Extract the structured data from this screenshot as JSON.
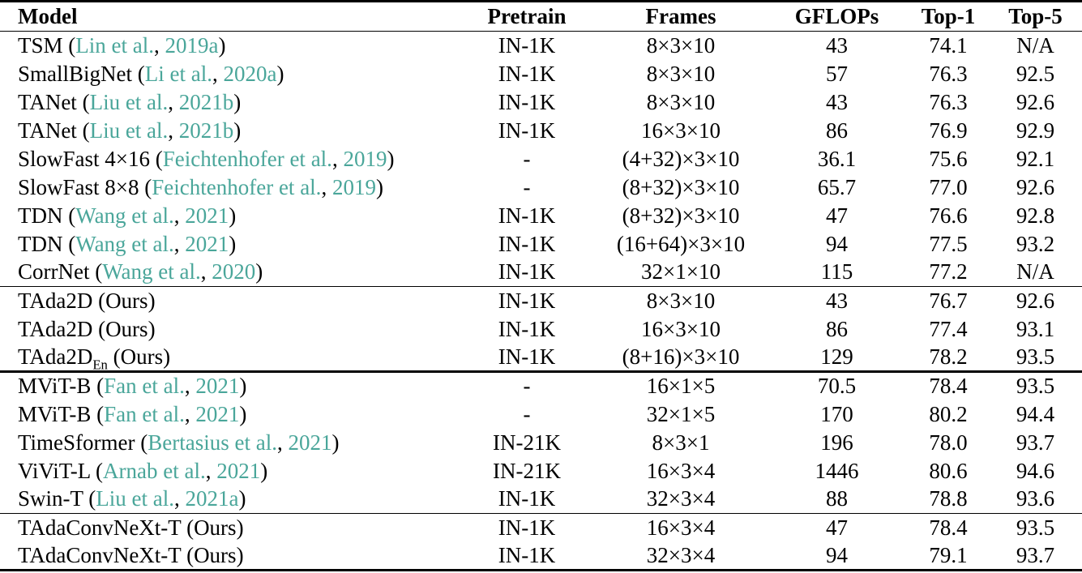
{
  "page": {
    "background": "#ffffff",
    "text_color": "#000000"
  },
  "table": {
    "citation_color": "#4aa69a",
    "columns": [
      "Model",
      "Pretrain",
      "Frames",
      "GFLOPs",
      "Top-1",
      "Top-5"
    ],
    "groups": [
      {
        "separator": "none",
        "rows": [
          {
            "model": {
              "name": "TSM",
              "cite": {
                "authors": "Lin et al.",
                "year": "2019a"
              }
            },
            "pretrain": "IN-1K",
            "frames": "8×3×10",
            "gflops": "43",
            "top1": "74.1",
            "top5": "N/A"
          },
          {
            "model": {
              "name": "SmallBigNet",
              "cite": {
                "authors": "Li et al.",
                "year": "2020a"
              }
            },
            "pretrain": "IN-1K",
            "frames": "8×3×10",
            "gflops": "57",
            "top1": "76.3",
            "top5": "92.5"
          },
          {
            "model": {
              "name": "TANet",
              "cite": {
                "authors": "Liu et al.",
                "year": "2021b"
              }
            },
            "pretrain": "IN-1K",
            "frames": "8×3×10",
            "gflops": "43",
            "top1": "76.3",
            "top5": "92.6"
          },
          {
            "model": {
              "name": "TANet",
              "cite": {
                "authors": "Liu et al.",
                "year": "2021b"
              }
            },
            "pretrain": "IN-1K",
            "frames": "16×3×10",
            "gflops": "86",
            "top1": "76.9",
            "top5": "92.9"
          },
          {
            "model": {
              "name": "SlowFast 4×16",
              "cite": {
                "authors": "Feichtenhofer et al.",
                "year": "2019"
              }
            },
            "pretrain": "-",
            "frames": "(4+32)×3×10",
            "gflops": "36.1",
            "top1": "75.6",
            "top5": "92.1"
          },
          {
            "model": {
              "name": "SlowFast 8×8",
              "cite": {
                "authors": "Feichtenhofer et al.",
                "year": "2019"
              }
            },
            "pretrain": "-",
            "frames": "(8+32)×3×10",
            "gflops": "65.7",
            "top1": "77.0",
            "top5": "92.6"
          },
          {
            "model": {
              "name": "TDN",
              "cite": {
                "authors": "Wang et al.",
                "year": "2021"
              }
            },
            "pretrain": "IN-1K",
            "frames": "(8+32)×3×10",
            "gflops": "47",
            "top1": "76.6",
            "top5": "92.8"
          },
          {
            "model": {
              "name": "TDN",
              "cite": {
                "authors": "Wang et al.",
                "year": "2021"
              }
            },
            "pretrain": "IN-1K",
            "frames": "(16+64)×3×10",
            "gflops": "94",
            "top1": "77.5",
            "top5": "93.2"
          },
          {
            "model": {
              "name": "CorrNet",
              "cite": {
                "authors": "Wang et al.",
                "year": "2020"
              }
            },
            "pretrain": "IN-1K",
            "frames": "32×1×10",
            "gflops": "115",
            "top1": "77.2",
            "top5": "N/A"
          }
        ]
      },
      {
        "separator": "thin",
        "rows": [
          {
            "model": {
              "name": "TAda2D",
              "tag": "Ours"
            },
            "pretrain": "IN-1K",
            "frames": "8×3×10",
            "gflops": "43",
            "top1": "76.7",
            "top5": "92.6"
          },
          {
            "model": {
              "name": "TAda2D",
              "tag": "Ours"
            },
            "pretrain": "IN-1K",
            "frames": "16×3×10",
            "gflops": "86",
            "top1": "77.4",
            "top5": "93.1"
          },
          {
            "model": {
              "name": "TAda2D",
              "sub": "En",
              "tag": "Ours"
            },
            "pretrain": "IN-1K",
            "frames": "(8+16)×3×10",
            "gflops": "129",
            "top1": "78.2",
            "top5": "93.5"
          }
        ]
      },
      {
        "separator": "thick",
        "rows": [
          {
            "model": {
              "name": "MViT-B",
              "cite": {
                "authors": "Fan et al.",
                "year": "2021"
              }
            },
            "pretrain": "-",
            "frames": "16×1×5",
            "gflops": "70.5",
            "top1": "78.4",
            "top5": "93.5"
          },
          {
            "model": {
              "name": "MViT-B",
              "cite": {
                "authors": "Fan et al.",
                "year": "2021"
              }
            },
            "pretrain": "-",
            "frames": "32×1×5",
            "gflops": "170",
            "top1": "80.2",
            "top5": "94.4"
          },
          {
            "model": {
              "name": "TimeSformer",
              "cite": {
                "authors": "Bertasius et al.",
                "year": "2021"
              }
            },
            "pretrain": "IN-21K",
            "frames": "8×3×1",
            "gflops": "196",
            "top1": "78.0",
            "top5": "93.7"
          },
          {
            "model": {
              "name": "ViViT-L",
              "cite": {
                "authors": "Arnab et al.",
                "year": "2021"
              }
            },
            "pretrain": "IN-21K",
            "frames": "16×3×4",
            "gflops": "1446",
            "top1": "80.6",
            "top5": "94.6"
          },
          {
            "model": {
              "name": "Swin-T",
              "cite": {
                "authors": "Liu et al.",
                "year": "2021a"
              }
            },
            "pretrain": "IN-1K",
            "frames": "32×3×4",
            "gflops": "88",
            "top1": "78.8",
            "top5": "93.6"
          }
        ]
      },
      {
        "separator": "thin",
        "rows": [
          {
            "model": {
              "name": "TAdaConvNeXt-T",
              "tag": "Ours"
            },
            "pretrain": "IN-1K",
            "frames": "16×3×4",
            "gflops": "47",
            "top1": "78.4",
            "top5": "93.5"
          },
          {
            "model": {
              "name": "TAdaConvNeXt-T",
              "tag": "Ours"
            },
            "pretrain": "IN-1K",
            "frames": "32×3×4",
            "gflops": "94",
            "top1": "79.1",
            "top5": "93.7"
          }
        ]
      }
    ]
  }
}
